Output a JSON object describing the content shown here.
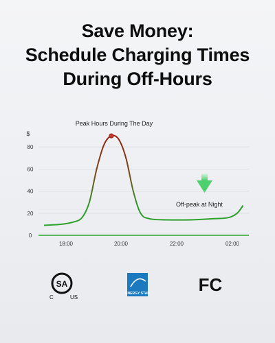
{
  "headline": {
    "line1": "Save Money:",
    "line2": "Schedule Charging Times",
    "line3": "During Off-Hours"
  },
  "chart_data": {
    "type": "line",
    "ylabel": "$",
    "yticks": [
      0,
      20,
      40,
      60,
      80
    ],
    "ylim": [
      0,
      95
    ],
    "x_tick_labels": [
      "18:00",
      "20:00",
      "22:00",
      "02:00"
    ],
    "grid": true,
    "annotations": {
      "peak": "Peak Hours During The Day",
      "offpeak": "Off-peak at Night"
    },
    "series": [
      {
        "values": [
          {
            "x": 0.0,
            "y": 9
          },
          {
            "x": 0.6,
            "y": 10
          },
          {
            "x": 1.0,
            "y": 12
          },
          {
            "x": 1.3,
            "y": 16
          },
          {
            "x": 1.55,
            "y": 30
          },
          {
            "x": 1.8,
            "y": 60
          },
          {
            "x": 2.05,
            "y": 82
          },
          {
            "x": 2.3,
            "y": 90
          },
          {
            "x": 2.55,
            "y": 87
          },
          {
            "x": 2.8,
            "y": 70
          },
          {
            "x": 3.05,
            "y": 40
          },
          {
            "x": 3.3,
            "y": 20
          },
          {
            "x": 3.6,
            "y": 15
          },
          {
            "x": 4.2,
            "y": 14
          },
          {
            "x": 5.0,
            "y": 14
          },
          {
            "x": 5.8,
            "y": 15
          },
          {
            "x": 6.3,
            "y": 16
          },
          {
            "x": 6.6,
            "y": 20
          },
          {
            "x": 6.8,
            "y": 27
          }
        ]
      }
    ],
    "colors": {
      "peak": "#8b1e12",
      "offpeak": "#2aa62a",
      "arrow": "#5fd878"
    }
  },
  "certifications": [
    {
      "name": "CSA C US"
    },
    {
      "name": "ENERGY STAR"
    },
    {
      "name": "FC"
    }
  ]
}
